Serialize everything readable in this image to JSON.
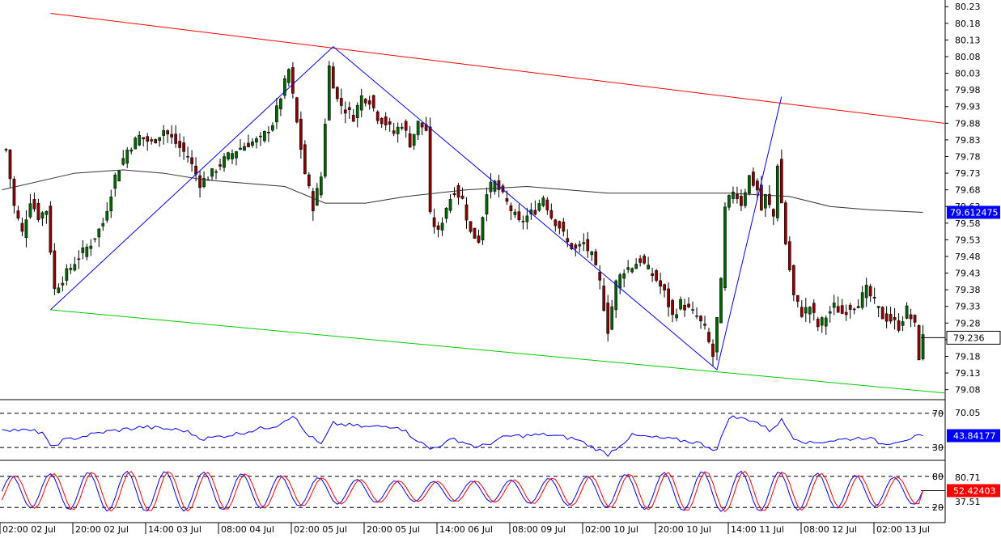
{
  "colors": {
    "background": "#ffffff",
    "grid_axis": "#000000",
    "candle_up": "#006400",
    "candle_down": "#8b0000",
    "ma_line": "#333333",
    "zigzag": "#0000ff",
    "channel_upper": "#ff0000",
    "channel_lower": "#00cc00",
    "rsi_line": "#0000ff",
    "stoch_main": "#0000ff",
    "stoch_signal": "#ff0000",
    "tag_blue": "#0000ff",
    "tag_red": "#ff0000"
  },
  "chart_data": [
    {
      "type": "candlestick",
      "panel": "price",
      "title": "",
      "ylim": [
        79.05,
        80.25
      ],
      "y_ticks": [
        "80.23",
        "80.18",
        "80.13",
        "80.08",
        "80.03",
        "79.98",
        "79.93",
        "79.88",
        "79.83",
        "79.78",
        "79.73",
        "79.68",
        "79.63",
        "79.58",
        "79.53",
        "79.48",
        "79.43",
        "79.38",
        "79.33",
        "79.28",
        "79.23",
        "79.18",
        "79.13",
        "79.08"
      ],
      "x_ticks": [
        "02:00 02 Jul",
        "20:00 02 Jul",
        "14:00 03 Jul",
        "08:00 04 Jul",
        "02:00 05 Jul",
        "20:00 05 Jul",
        "14:00 06 Jul",
        "08:00 09 Jul",
        "02:00 10 Jul",
        "20:00 10 Jul",
        "14:00 11 Jul",
        "08:00 12 Jul",
        "02:00 13 Jul"
      ],
      "anchor_values": [
        {
          "bar": 1,
          "close": 79.8
        },
        {
          "bar": 3,
          "close": 79.63
        },
        {
          "bar": 5,
          "close": 79.55
        },
        {
          "bar": 7,
          "close": 79.65
        },
        {
          "bar": 9,
          "close": 79.6
        },
        {
          "bar": 11,
          "close": 79.62
        },
        {
          "bar": 13,
          "close": 79.38
        },
        {
          "bar": 16,
          "close": 79.43
        },
        {
          "bar": 19,
          "close": 79.48
        },
        {
          "bar": 22,
          "close": 79.52
        },
        {
          "bar": 25,
          "close": 79.58
        },
        {
          "bar": 28,
          "close": 79.72
        },
        {
          "bar": 31,
          "close": 79.8
        },
        {
          "bar": 34,
          "close": 79.84
        },
        {
          "bar": 37,
          "close": 79.82
        },
        {
          "bar": 40,
          "close": 79.86
        },
        {
          "bar": 43,
          "close": 79.82
        },
        {
          "bar": 46,
          "close": 79.78
        },
        {
          "bar": 49,
          "close": 79.7
        },
        {
          "bar": 52,
          "close": 79.73
        },
        {
          "bar": 55,
          "close": 79.77
        },
        {
          "bar": 58,
          "close": 79.8
        },
        {
          "bar": 61,
          "close": 79.82
        },
        {
          "bar": 64,
          "close": 79.83
        },
        {
          "bar": 67,
          "close": 79.88
        },
        {
          "bar": 69,
          "close": 79.96
        },
        {
          "bar": 71,
          "close": 80.04
        },
        {
          "bar": 73,
          "close": 79.88
        },
        {
          "bar": 75,
          "close": 79.73
        },
        {
          "bar": 77,
          "close": 79.63
        },
        {
          "bar": 79,
          "close": 79.72
        },
        {
          "bar": 81,
          "close": 80.05
        },
        {
          "bar": 83,
          "close": 79.95
        },
        {
          "bar": 85,
          "close": 79.92
        },
        {
          "bar": 87,
          "close": 79.9
        },
        {
          "bar": 89,
          "close": 79.96
        },
        {
          "bar": 91,
          "close": 79.95
        },
        {
          "bar": 93,
          "close": 79.9
        },
        {
          "bar": 95,
          "close": 79.88
        },
        {
          "bar": 97,
          "close": 79.85
        },
        {
          "bar": 99,
          "close": 79.88
        },
        {
          "bar": 101,
          "close": 79.82
        },
        {
          "bar": 103,
          "close": 79.88
        },
        {
          "bar": 105,
          "close": 79.86
        },
        {
          "bar": 106,
          "close": 79.6
        },
        {
          "bar": 108,
          "close": 79.55
        },
        {
          "bar": 110,
          "close": 79.63
        },
        {
          "bar": 112,
          "close": 79.68
        },
        {
          "bar": 114,
          "close": 79.65
        },
        {
          "bar": 116,
          "close": 79.55
        },
        {
          "bar": 118,
          "close": 79.53
        },
        {
          "bar": 120,
          "close": 79.68
        },
        {
          "bar": 122,
          "close": 79.7
        },
        {
          "bar": 124,
          "close": 79.66
        },
        {
          "bar": 126,
          "close": 79.62
        },
        {
          "bar": 128,
          "close": 79.58
        },
        {
          "bar": 130,
          "close": 79.6
        },
        {
          "bar": 132,
          "close": 79.62
        },
        {
          "bar": 134,
          "close": 79.66
        },
        {
          "bar": 136,
          "close": 79.6
        },
        {
          "bar": 138,
          "close": 79.57
        },
        {
          "bar": 140,
          "close": 79.52
        },
        {
          "bar": 142,
          "close": 79.5
        },
        {
          "bar": 144,
          "close": 79.52
        },
        {
          "bar": 146,
          "close": 79.48
        },
        {
          "bar": 148,
          "close": 79.4
        },
        {
          "bar": 150,
          "close": 79.26
        },
        {
          "bar": 152,
          "close": 79.4
        },
        {
          "bar": 154,
          "close": 79.44
        },
        {
          "bar": 156,
          "close": 79.45
        },
        {
          "bar": 158,
          "close": 79.47
        },
        {
          "bar": 160,
          "close": 79.44
        },
        {
          "bar": 162,
          "close": 79.41
        },
        {
          "bar": 164,
          "close": 79.37
        },
        {
          "bar": 166,
          "close": 79.3
        },
        {
          "bar": 168,
          "close": 79.34
        },
        {
          "bar": 170,
          "close": 79.32
        },
        {
          "bar": 172,
          "close": 79.3
        },
        {
          "bar": 174,
          "close": 79.26
        },
        {
          "bar": 176,
          "close": 79.18
        },
        {
          "bar": 178,
          "close": 79.4
        },
        {
          "bar": 179,
          "close": 79.62
        },
        {
          "bar": 181,
          "close": 79.68
        },
        {
          "bar": 183,
          "close": 79.64
        },
        {
          "bar": 185,
          "close": 79.72
        },
        {
          "bar": 187,
          "close": 79.68
        },
        {
          "bar": 188,
          "close": 79.62
        },
        {
          "bar": 189,
          "close": 79.66
        },
        {
          "bar": 191,
          "close": 79.6
        },
        {
          "bar": 192,
          "close": 79.76
        },
        {
          "bar": 194,
          "close": 79.52
        },
        {
          "bar": 196,
          "close": 79.36
        },
        {
          "bar": 198,
          "close": 79.31
        },
        {
          "bar": 200,
          "close": 79.33
        },
        {
          "bar": 202,
          "close": 79.27
        },
        {
          "bar": 204,
          "close": 79.3
        },
        {
          "bar": 206,
          "close": 79.33
        },
        {
          "bar": 208,
          "close": 79.31
        },
        {
          "bar": 210,
          "close": 79.33
        },
        {
          "bar": 212,
          "close": 79.34
        },
        {
          "bar": 214,
          "close": 79.38
        },
        {
          "bar": 216,
          "close": 79.34
        },
        {
          "bar": 218,
          "close": 79.3
        },
        {
          "bar": 220,
          "close": 79.29
        },
        {
          "bar": 222,
          "close": 79.27
        },
        {
          "bar": 224,
          "close": 79.32
        },
        {
          "bar": 226,
          "close": 79.27
        },
        {
          "bar": 227,
          "close": 79.18
        },
        {
          "bar": 228,
          "close": 79.236
        }
      ],
      "moving_average": [
        {
          "bar": 0,
          "value": 79.68
        },
        {
          "bar": 18,
          "value": 79.73
        },
        {
          "bar": 30,
          "value": 79.74
        },
        {
          "bar": 40,
          "value": 79.73
        },
        {
          "bar": 50,
          "value": 79.71
        },
        {
          "bar": 60,
          "value": 79.7
        },
        {
          "bar": 70,
          "value": 79.69
        },
        {
          "bar": 80,
          "value": 79.64
        },
        {
          "bar": 90,
          "value": 79.64
        },
        {
          "bar": 100,
          "value": 79.66
        },
        {
          "bar": 115,
          "value": 79.68
        },
        {
          "bar": 130,
          "value": 79.69
        },
        {
          "bar": 150,
          "value": 79.67
        },
        {
          "bar": 165,
          "value": 79.67
        },
        {
          "bar": 180,
          "value": 79.67
        },
        {
          "bar": 195,
          "value": 79.66
        },
        {
          "bar": 205,
          "value": 79.63
        },
        {
          "bar": 215,
          "value": 79.62
        },
        {
          "bar": 228,
          "value": 79.612475
        }
      ],
      "zigzag": [
        {
          "bar": 12,
          "value": 79.32
        },
        {
          "bar": 82,
          "value": 80.11
        },
        {
          "bar": 177,
          "value": 79.14
        },
        {
          "bar": 193,
          "value": 79.96
        }
      ],
      "channel_upper": [
        {
          "bar": 12,
          "value": 80.21
        },
        {
          "bar": 234,
          "value": 79.88
        }
      ],
      "channel_lower": [
        {
          "bar": 12,
          "value": 79.32
        },
        {
          "bar": 234,
          "value": 79.07
        }
      ],
      "tags": [
        {
          "label": "79.612475",
          "value": 79.612475,
          "style": "blue"
        },
        {
          "label": "79.236",
          "value": 79.236,
          "style": "outline"
        }
      ]
    },
    {
      "type": "line",
      "panel": "rsi",
      "ylim": [
        15,
        85
      ],
      "levels": [
        {
          "value": 70,
          "label": "70"
        },
        {
          "value": 30,
          "label": "30"
        }
      ],
      "right_labels": [
        "70.05"
      ],
      "tag": {
        "label": "43.84177",
        "value": 43.84177
      },
      "anchors": [
        {
          "bar": 0,
          "value": 52
        },
        {
          "bar": 10,
          "value": 48
        },
        {
          "bar": 12,
          "value": 30
        },
        {
          "bar": 15,
          "value": 38
        },
        {
          "bar": 25,
          "value": 48
        },
        {
          "bar": 35,
          "value": 54
        },
        {
          "bar": 45,
          "value": 50
        },
        {
          "bar": 50,
          "value": 40
        },
        {
          "bar": 58,
          "value": 46
        },
        {
          "bar": 68,
          "value": 56
        },
        {
          "bar": 72,
          "value": 68
        },
        {
          "bar": 75,
          "value": 48
        },
        {
          "bar": 79,
          "value": 33
        },
        {
          "bar": 82,
          "value": 58
        },
        {
          "bar": 90,
          "value": 54
        },
        {
          "bar": 98,
          "value": 55
        },
        {
          "bar": 106,
          "value": 28
        },
        {
          "bar": 112,
          "value": 40
        },
        {
          "bar": 118,
          "value": 30
        },
        {
          "bar": 125,
          "value": 43
        },
        {
          "bar": 135,
          "value": 45
        },
        {
          "bar": 142,
          "value": 40
        },
        {
          "bar": 150,
          "value": 22
        },
        {
          "bar": 156,
          "value": 44
        },
        {
          "bar": 165,
          "value": 40
        },
        {
          "bar": 172,
          "value": 36
        },
        {
          "bar": 177,
          "value": 27
        },
        {
          "bar": 180,
          "value": 66
        },
        {
          "bar": 186,
          "value": 62
        },
        {
          "bar": 190,
          "value": 50
        },
        {
          "bar": 193,
          "value": 62
        },
        {
          "bar": 196,
          "value": 42
        },
        {
          "bar": 200,
          "value": 35
        },
        {
          "bar": 205,
          "value": 38
        },
        {
          "bar": 214,
          "value": 42
        },
        {
          "bar": 218,
          "value": 34
        },
        {
          "bar": 224,
          "value": 40
        },
        {
          "bar": 228,
          "value": 43.84177
        }
      ]
    },
    {
      "type": "line",
      "panel": "stochastic",
      "ylim": [
        0,
        100
      ],
      "levels": [
        {
          "value": 80,
          "label": "80"
        },
        {
          "value": 20,
          "label": "20"
        }
      ],
      "right_labels": [
        "80.71",
        "37.51"
      ],
      "tag": {
        "label": "52.42403",
        "value": 52.42403
      },
      "series": [
        {
          "name": "",
          "role": "main",
          "period_bars": 9.5,
          "phase": 0.0
        },
        {
          "name": "",
          "role": "signal",
          "period_bars": 9.5,
          "phase": 0.6
        }
      ],
      "swing_range": [
        12,
        90
      ],
      "last_value": 52.42403
    }
  ]
}
